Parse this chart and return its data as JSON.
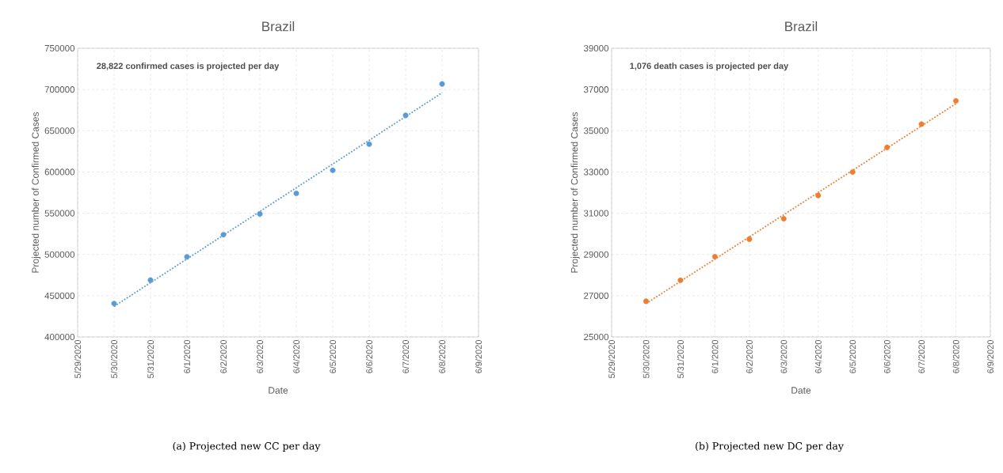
{
  "chart_data": [
    {
      "type": "scatter",
      "title": "Brazil",
      "xlabel": "Date",
      "ylabel": "Projected number of Confirmed Cases",
      "annotations": [
        "28,822 confirmed cases is projected per day",
        "(a) Projected new CC per day"
      ],
      "x": [
        "2020-05-30",
        "2020-05-31",
        "2020-06-01",
        "2020-06-02",
        "2020-06-03",
        "2020-06-04",
        "2020-06-05",
        "2020-06-06",
        "2020-06-07",
        "2020-06-08"
      ],
      "xlim": [
        "2020-05-29",
        "2020-06-09"
      ],
      "xticks": [
        {
          "value": "2020-05-29",
          "label": "5/29/2020"
        },
        {
          "value": "2020-05-30",
          "label": "5/30/2020"
        },
        {
          "value": "2020-05-31",
          "label": "5/31/2020"
        },
        {
          "value": "2020-06-01",
          "label": "6/1/2020"
        },
        {
          "value": "2020-06-02",
          "label": "6/2/2020"
        },
        {
          "value": "2020-06-03",
          "label": "6/3/2020"
        },
        {
          "value": "2020-06-04",
          "label": "6/4/2020"
        },
        {
          "value": "2020-06-05",
          "label": "6/5/2020"
        },
        {
          "value": "2020-06-06",
          "label": "6/6/2020"
        },
        {
          "value": "2020-06-07",
          "label": "6/7/2020"
        },
        {
          "value": "2020-06-08",
          "label": "6/8/2020"
        },
        {
          "value": "2020-06-09",
          "label": "6/9/2020"
        }
      ],
      "ylim": [
        400000,
        750000
      ],
      "yticks": [
        400000,
        450000,
        500000,
        550000,
        600000,
        650000,
        700000,
        750000
      ],
      "grid": true,
      "marker": "circle",
      "series": [
        {
          "color": "#5b9bd5",
          "values": [
            440400,
            468900,
            497100,
            524000,
            549000,
            574000,
            602000,
            633700,
            668600,
            706700
          ]
        },
        {
          "type": "line",
          "color": "#5b9bd5",
          "line_style": "dotted",
          "marker": "none",
          "x": [
            "2020-05-30",
            "2020-06-08"
          ],
          "values": [
            437000,
            696000
          ]
        }
      ]
    },
    {
      "type": "scatter",
      "title": "Brazil",
      "xlabel": "Date",
      "ylabel": "Projected number of Confirmed Cases",
      "annotations": [
        "1,076 death cases is projected per day",
        "(b) Projected new DC per day"
      ],
      "x": [
        "2020-05-30",
        "2020-05-31",
        "2020-06-01",
        "2020-06-02",
        "2020-06-03",
        "2020-06-04",
        "2020-06-05",
        "2020-06-06",
        "2020-06-07",
        "2020-06-08"
      ],
      "xlim": [
        "2020-05-29",
        "2020-06-09"
      ],
      "xticks": [
        {
          "value": "2020-05-29",
          "label": "5/29/2020"
        },
        {
          "value": "2020-05-30",
          "label": "5/30/2020"
        },
        {
          "value": "2020-05-31",
          "label": "5/31/2020"
        },
        {
          "value": "2020-06-01",
          "label": "6/1/2020"
        },
        {
          "value": "2020-06-02",
          "label": "6/2/2020"
        },
        {
          "value": "2020-06-03",
          "label": "6/3/2020"
        },
        {
          "value": "2020-06-04",
          "label": "6/4/2020"
        },
        {
          "value": "2020-06-05",
          "label": "6/5/2020"
        },
        {
          "value": "2020-06-06",
          "label": "6/6/2020"
        },
        {
          "value": "2020-06-07",
          "label": "6/7/2020"
        },
        {
          "value": "2020-06-08",
          "label": "6/8/2020"
        },
        {
          "value": "2020-06-09",
          "label": "6/9/2020"
        }
      ],
      "ylim": [
        25000,
        39000
      ],
      "yticks": [
        25000,
        27000,
        29000,
        31000,
        33000,
        35000,
        37000,
        39000
      ],
      "grid": true,
      "marker": "circle",
      "series": [
        {
          "color": "#ed7d31",
          "values": [
            26730,
            27750,
            28890,
            29740,
            30730,
            31860,
            33000,
            34190,
            35320,
            36450
          ]
        },
        {
          "type": "line",
          "color": "#ed7d31",
          "line_style": "dotted",
          "marker": "none",
          "x": [
            "2020-05-30",
            "2020-06-08"
          ],
          "values": [
            26620,
            36310
          ]
        }
      ]
    }
  ]
}
